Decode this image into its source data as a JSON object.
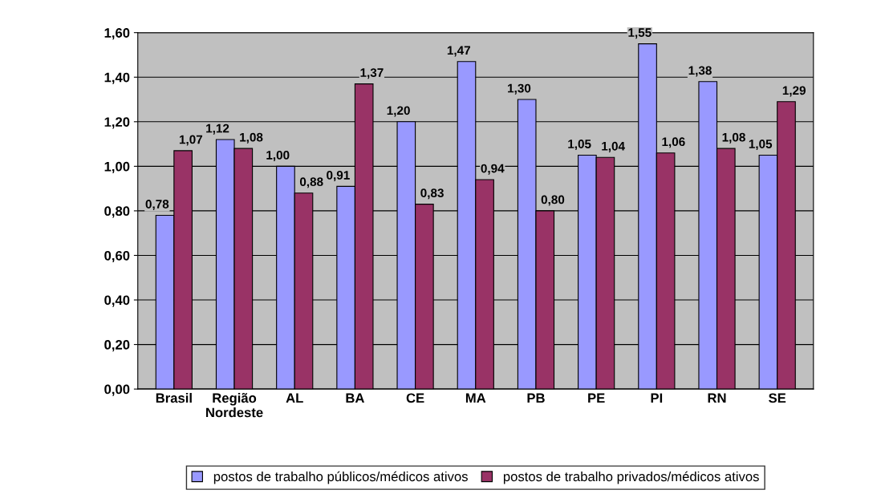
{
  "chart_data": {
    "type": "bar",
    "categories": [
      "Brasil",
      "Região\nNordeste",
      "AL",
      "BA",
      "CE",
      "MA",
      "PB",
      "PE",
      "PI",
      "RN",
      "SE"
    ],
    "series": [
      {
        "name": "postos de trabalho públicos/médicos ativos",
        "color": "#9999ff",
        "values": [
          0.78,
          1.12,
          1.0,
          0.91,
          1.2,
          1.47,
          1.3,
          1.05,
          1.55,
          1.38,
          1.05
        ],
        "value_labels": [
          "0,78",
          "1,12",
          "1,00",
          "0,91",
          "1,20",
          "1,47",
          "1,30",
          "1,05",
          "1,55",
          "1,38",
          "1,05"
        ]
      },
      {
        "name": "postos de trabalho privados/médicos ativos",
        "color": "#993366",
        "values": [
          1.07,
          1.08,
          0.88,
          1.37,
          0.83,
          0.94,
          0.8,
          1.04,
          1.06,
          1.08,
          1.29
        ],
        "value_labels": [
          "1,07",
          "1,08",
          "0,88",
          "1,37",
          "0,83",
          "0,94",
          "0,80",
          "1,04",
          "1,06",
          "1,08",
          "1,29"
        ]
      }
    ],
    "ylim": [
      0,
      1.6
    ],
    "yticks": [
      {
        "value": 0,
        "label": "0,00"
      },
      {
        "value": 0.2,
        "label": "0,20"
      },
      {
        "value": 0.4,
        "label": "0,40"
      },
      {
        "value": 0.6,
        "label": "0,60"
      },
      {
        "value": 0.8,
        "label": "0,80"
      },
      {
        "value": 1.0,
        "label": "1,00"
      },
      {
        "value": 1.2,
        "label": "1,20"
      },
      {
        "value": 1.4,
        "label": "1,40"
      },
      {
        "value": 1.6,
        "label": "1,60"
      }
    ],
    "grid": "y",
    "legend": "bottom"
  }
}
